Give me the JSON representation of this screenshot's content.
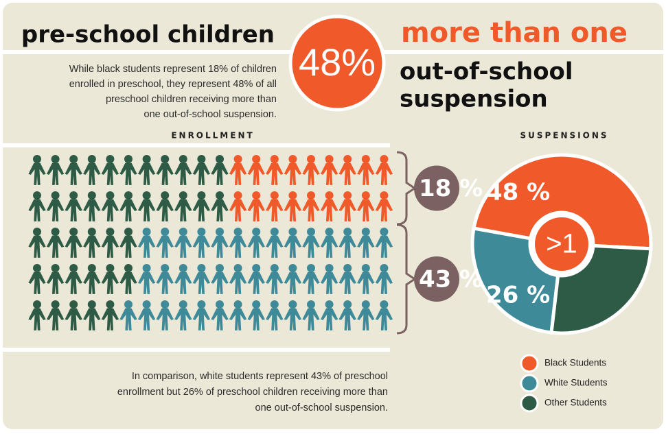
{
  "header": {
    "title_left": "pre-school children",
    "big_stat": "48%",
    "title_right": "more than one",
    "subtitle_lines": [
      "out-of-school",
      "suspension"
    ]
  },
  "intro_lines": [
    "While black students represent 18% of children",
    "enrolled in preschool, they represent 48% of all",
    "preschool children receiving more than",
    "one out-of-school suspension."
  ],
  "outro_lines": [
    "In comparison, white students represent 43% of preschool",
    "enrollment but 26% of preschool children receiving more than",
    "one out-of-school suspension."
  ],
  "chart_data": [
    {
      "type": "pictogram",
      "title": "ENROLLMENT",
      "categories": [
        "Black Students",
        "White Students",
        "Other Students"
      ],
      "values": [
        18,
        43,
        39
      ],
      "value_labels": [
        "18 %",
        "43 %",
        null
      ],
      "colors": [
        "#f0592a",
        "#3f8a98",
        "#2e5b45"
      ]
    },
    {
      "type": "pie",
      "title": "SUSPENSIONS",
      "center_label": ">1",
      "categories": [
        "Black Students",
        "White Students",
        "Other Students"
      ],
      "values": [
        48,
        26,
        26
      ],
      "value_labels": [
        "48 %",
        "26 %",
        null
      ],
      "colors": [
        "#f0592a",
        "#3f8a98",
        "#2e5b45"
      ]
    }
  ]
}
